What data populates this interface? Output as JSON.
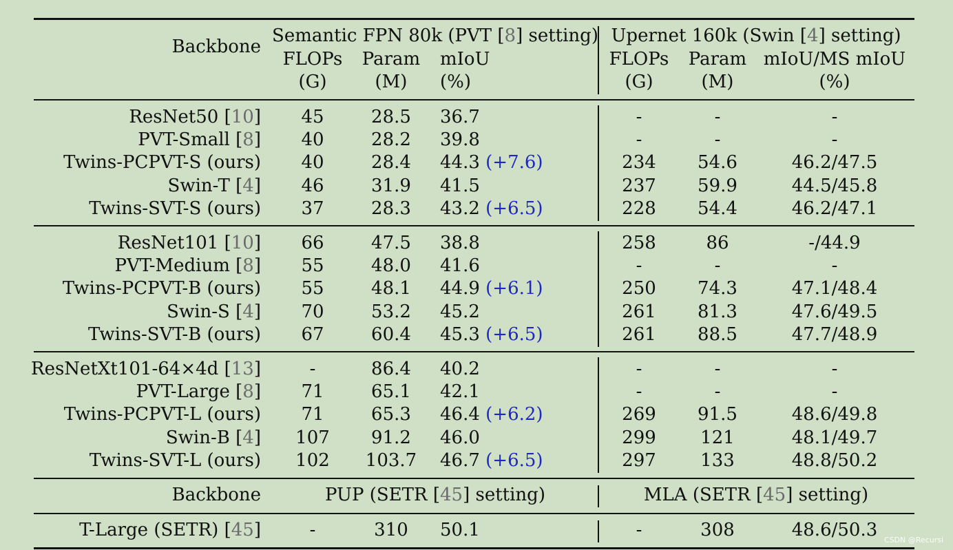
{
  "header": {
    "backbone_label": "Backbone",
    "group1": {
      "title_prefix": "Semantic FPN 80k (PVT [",
      "title_ref": "8",
      "title_suffix": "] setting)"
    },
    "group2": {
      "title_prefix": "Upernet 160k (Swin [",
      "title_ref": "4",
      "title_suffix": "] setting)"
    },
    "g1_cols": [
      {
        "name": "FLOPs",
        "unit": "(G)"
      },
      {
        "name": "Param",
        "unit": "(M)"
      },
      {
        "name": "mIoU",
        "unit": "(%)"
      }
    ],
    "g2_cols": [
      {
        "name": "FLOPs",
        "unit": "(G)"
      },
      {
        "name": "Param",
        "unit": "(M)"
      },
      {
        "name": "mIoU/MS mIoU",
        "unit": "(%)"
      }
    ]
  },
  "rows": [
    {
      "name": "ResNet50",
      "ref": "10",
      "flops": "45",
      "param": "28.5",
      "miou": "36.7",
      "gain": "",
      "u_flops": "-",
      "u_param": "-",
      "u_miou": "-"
    },
    {
      "name": "PVT-Small",
      "ref": "8",
      "flops": "40",
      "param": "28.2",
      "miou": "39.8",
      "gain": "",
      "u_flops": "-",
      "u_param": "-",
      "u_miou": "-"
    },
    {
      "name": "Twins-PCPVT-S (ours)",
      "ref": "",
      "flops": "40",
      "param": "28.4",
      "miou": "44.3",
      "gain": "(+7.6)",
      "u_flops": "234",
      "u_param": "54.6",
      "u_miou": "46.2/47.5"
    },
    {
      "name": "Swin-T",
      "ref": "4",
      "flops": "46",
      "param": "31.9",
      "miou": "41.5",
      "gain": "",
      "u_flops": "237",
      "u_param": "59.9",
      "u_miou": "44.5/45.8"
    },
    {
      "name": "Twins-SVT-S (ours)",
      "ref": "",
      "flops": "37",
      "param": "28.3",
      "miou": "43.2",
      "gain": "(+6.5)",
      "u_flops": "228",
      "u_param": "54.4",
      "u_miou": "46.2/47.1"
    },
    {
      "name": "ResNet101",
      "ref": "10",
      "flops": "66",
      "param": "47.5",
      "miou": "38.8",
      "gain": "",
      "u_flops": "258",
      "u_param": "86",
      "u_miou": "-/44.9"
    },
    {
      "name": "PVT-Medium",
      "ref": "8",
      "flops": "55",
      "param": "48.0",
      "miou": "41.6",
      "gain": "",
      "u_flops": "-",
      "u_param": "-",
      "u_miou": "-"
    },
    {
      "name": "Twins-PCPVT-B (ours)",
      "ref": "",
      "flops": "55",
      "param": "48.1",
      "miou": "44.9",
      "gain": "(+6.1)",
      "u_flops": "250",
      "u_param": "74.3",
      "u_miou": "47.1/48.4"
    },
    {
      "name": "Swin-S",
      "ref": "4",
      "flops": "70",
      "param": "53.2",
      "miou": "45.2",
      "gain": "",
      "u_flops": "261",
      "u_param": "81.3",
      "u_miou": "47.6/49.5"
    },
    {
      "name": "Twins-SVT-B (ours)",
      "ref": "",
      "flops": "67",
      "param": "60.4",
      "miou": "45.3",
      "gain": "(+6.5)",
      "u_flops": "261",
      "u_param": "88.5",
      "u_miou": "47.7/48.9"
    },
    {
      "name": "ResNetXt101-64×4d",
      "ref": "13",
      "flops": "-",
      "param": "86.4",
      "miou": "40.2",
      "gain": "",
      "u_flops": "-",
      "u_param": "-",
      "u_miou": "-"
    },
    {
      "name": "PVT-Large",
      "ref": "8",
      "flops": "71",
      "param": "65.1",
      "miou": "42.1",
      "gain": "",
      "u_flops": "-",
      "u_param": "-",
      "u_miou": "-"
    },
    {
      "name": "Twins-PCPVT-L (ours)",
      "ref": "",
      "flops": "71",
      "param": "65.3",
      "miou": "46.4",
      "gain": "(+6.2)",
      "u_flops": "269",
      "u_param": "91.5",
      "u_miou": "48.6/49.8"
    },
    {
      "name": "Swin-B",
      "ref": "4",
      "flops": "107",
      "param": "91.2",
      "miou": "46.0",
      "gain": "",
      "u_flops": "299",
      "u_param": "121",
      "u_miou": "48.1/49.7"
    },
    {
      "name": "Twins-SVT-L (ours)",
      "ref": "",
      "flops": "102",
      "param": "103.7",
      "miou": "46.7",
      "gain": "(+6.5)",
      "u_flops": "297",
      "u_param": "133",
      "u_miou": "48.8/50.2"
    }
  ],
  "setr_header": {
    "backbone_label": "Backbone",
    "pup": {
      "prefix": "PUP (SETR [",
      "ref": "45",
      "suffix": "] setting)"
    },
    "mla": {
      "prefix": "MLA (SETR [",
      "ref": "45",
      "suffix": "] setting)"
    }
  },
  "setr_row": {
    "name": "T-Large (SETR)",
    "ref": "45",
    "flops": "-",
    "param": "310",
    "miou": "50.1",
    "u_flops": "-",
    "u_param": "308",
    "u_miou": "48.6/50.3"
  },
  "watermark": "CSDN @Recursi",
  "colors": {
    "background": "#cfe0c6",
    "gain": "#1f28c2",
    "ref": "#6b6b6b"
  }
}
